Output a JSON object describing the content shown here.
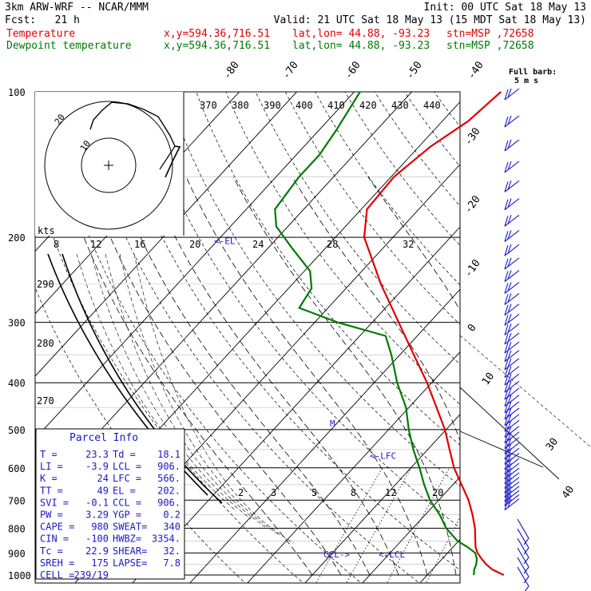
{
  "header": {
    "model": "3km ARW-WRF -- NCAR/MMM",
    "init": "Init: 00 UTC Sat 18 May 13",
    "fcst_label": "Fcst:",
    "fcst_value": "21 h",
    "valid": "Valid: 21 UTC Sat 18 May 13 (15 MDT Sat 18 May 13)",
    "temperature_line": {
      "name": "Temperature",
      "xy": "x,y=594.36,716.51",
      "latlon": "lat,lon= 44.88, -93.23",
      "stn": "stn=MSP ,72658"
    },
    "dewpoint_line": {
      "name": "Dewpoint temperature",
      "xy": "x,y=594.36,716.51",
      "latlon": "lat,lon= 44.88, -93.23",
      "stn": "stn=MSP ,72658"
    },
    "full_barb_label_1": "Full barb:",
    "full_barb_label_2": "5 m s"
  },
  "colors": {
    "temperature": "#e00000",
    "dewpoint": "#007a00",
    "parcel_box": "#1a1ac8",
    "wind_barbs": "#1a1ac8",
    "grid": "#000000"
  },
  "parcel_info": {
    "title": "Parcel Info",
    "rows": [
      [
        "T  =",
        "23.3",
        "Td =",
        "18.1"
      ],
      [
        "LI =",
        "-3.9",
        "LCL =",
        "906."
      ],
      [
        "K  =",
        "24",
        "LFC =",
        "566."
      ],
      [
        "TT =",
        "49",
        "EL =",
        "202."
      ],
      [
        "SVI =",
        "-0.1",
        "CCL =",
        "906."
      ],
      [
        "PW =",
        "3.29",
        "YGP =",
        "0.2"
      ],
      [
        "CAPE =",
        "980",
        "SWEAT=",
        "340"
      ],
      [
        "CIN =",
        "-100",
        "HWBZ=",
        "3354."
      ],
      [
        "Tc =",
        "22.9",
        "SHEAR=",
        "32."
      ],
      [
        "SREH =",
        "175",
        "LAPSE=",
        "7.8"
      ],
      [
        "CELL =",
        "239/19",
        "",
        ""
      ]
    ]
  },
  "chart_data": {
    "type": "skew-t log-p",
    "pressure_levels": [
      100,
      200,
      300,
      400,
      500,
      600,
      700,
      800,
      900,
      1000
    ],
    "temperature_labels": [
      "-80",
      "-70",
      "-60",
      "-50",
      "-40",
      "-30",
      "-20",
      "-10",
      "0",
      "10",
      "30",
      "40"
    ],
    "theta_e_labels": [
      "370",
      "380",
      "390",
      "400",
      "410",
      "420",
      "430",
      "440"
    ],
    "dry_adiabat_labels": [
      "290",
      "280",
      "270"
    ],
    "mixing_ratio_labels": [
      "2",
      "3",
      "5",
      "8",
      "12",
      "20"
    ],
    "hodograph": {
      "units_label": "kts",
      "speed_labels": [
        "8",
        "12",
        "16",
        "20",
        "24",
        "28",
        "32"
      ],
      "ring_labels": [
        "20",
        "10"
      ],
      "trace": [
        [
          0.0,
          0.0
        ],
        [
          -3,
          4
        ],
        [
          -7,
          9
        ],
        [
          -10,
          14
        ],
        [
          -12,
          18
        ],
        [
          -13,
          22
        ],
        [
          -15,
          26
        ],
        [
          -18,
          30
        ],
        [
          -23,
          34
        ],
        [
          -21,
          38
        ],
        [
          -17,
          41
        ],
        [
          -13,
          42
        ],
        [
          -8,
          43
        ]
      ]
    },
    "levels": {
      "el": {
        "label": "<-EL",
        "pressure": 202
      },
      "lfc": {
        "label": "<-LFC",
        "pressure": 566
      },
      "lcl": {
        "label": "<-LCL",
        "pressure": 906
      },
      "ccl": {
        "label": "CCL->",
        "pressure": 906
      },
      "m": {
        "label": "M",
        "pressure": 485
      }
    },
    "series": [
      {
        "name": "Temperature",
        "points": [
          [
            1000,
            23.3
          ],
          [
            975,
            20.5
          ],
          [
            950,
            18.5
          ],
          [
            925,
            16.8
          ],
          [
            900,
            15.2
          ],
          [
            875,
            13.9
          ],
          [
            850,
            12.9
          ],
          [
            800,
            10.8
          ],
          [
            750,
            8.2
          ],
          [
            700,
            5.2
          ],
          [
            650,
            1.5
          ],
          [
            600,
            -2.5
          ],
          [
            550,
            -6.2
          ],
          [
            500,
            -10.2
          ],
          [
            450,
            -15.2
          ],
          [
            400,
            -20.8
          ],
          [
            350,
            -27.6
          ],
          [
            300,
            -35.4
          ],
          [
            250,
            -44.6
          ],
          [
            200,
            -55.0
          ],
          [
            175,
            -59.0
          ],
          [
            150,
            -59.5
          ],
          [
            130,
            -58.0
          ],
          [
            115,
            -55.5
          ],
          [
            100,
            -54.5
          ]
        ]
      },
      {
        "name": "Dewpoint temperature",
        "points": [
          [
            1000,
            18.1
          ],
          [
            975,
            17.3
          ],
          [
            950,
            16.8
          ],
          [
            925,
            16.0
          ],
          [
            900,
            14.8
          ],
          [
            875,
            12.5
          ],
          [
            850,
            9.8
          ],
          [
            800,
            5.8
          ],
          [
            750,
            2.5
          ],
          [
            700,
            -1.5
          ],
          [
            650,
            -5.0
          ],
          [
            600,
            -8.5
          ],
          [
            550,
            -12.5
          ],
          [
            500,
            -16.5
          ],
          [
            450,
            -20.5
          ],
          [
            400,
            -26.0
          ],
          [
            350,
            -31.5
          ],
          [
            320,
            -35.5
          ],
          [
            300,
            -46.0
          ],
          [
            280,
            -55.0
          ],
          [
            255,
            -56.0
          ],
          [
            235,
            -59.0
          ],
          [
            210,
            -66.0
          ],
          [
            190,
            -72.0
          ],
          [
            175,
            -75.0
          ],
          [
            150,
            -76.0
          ],
          [
            135,
            -76.0
          ],
          [
            120,
            -77.0
          ],
          [
            100,
            -79.0
          ]
        ]
      }
    ],
    "wind_barb_count": 45
  }
}
